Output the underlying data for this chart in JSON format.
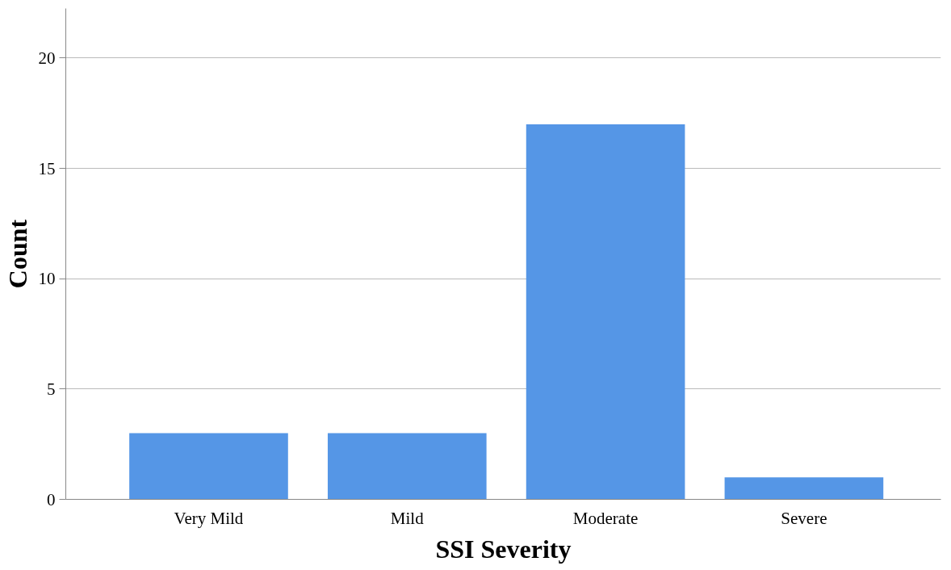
{
  "chart_data": {
    "type": "bar",
    "xlabel": "SSI Severity",
    "ylabel": "Count",
    "categories": [
      "Very Mild",
      "Mild",
      "Moderate",
      "Severe"
    ],
    "values": [
      3,
      3,
      17,
      1
    ],
    "color": "#5596e6",
    "ylim": [
      0,
      22.25
    ],
    "yticks": [
      0,
      5,
      10,
      15,
      20
    ],
    "grid": "y"
  }
}
